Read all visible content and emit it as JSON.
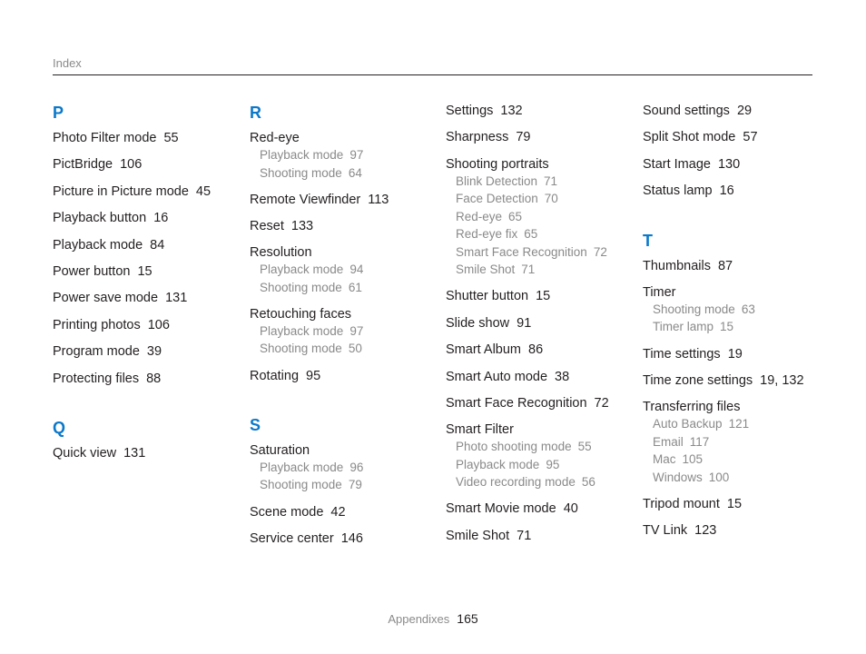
{
  "header": {
    "label": "Index"
  },
  "footer": {
    "section": "Appendixes",
    "page": "165"
  },
  "columns": [
    {
      "sections": [
        {
          "letter": "P",
          "entries": [
            {
              "label": "Photo Filter mode",
              "pages": "55"
            },
            {
              "label": "PictBridge",
              "pages": "106"
            },
            {
              "label": "Picture in Picture mode",
              "pages": "45"
            },
            {
              "label": "Playback button",
              "pages": "16"
            },
            {
              "label": "Playback mode",
              "pages": "84"
            },
            {
              "label": "Power button",
              "pages": "15"
            },
            {
              "label": "Power save mode",
              "pages": "131"
            },
            {
              "label": "Printing photos",
              "pages": "106"
            },
            {
              "label": "Program mode",
              "pages": "39"
            },
            {
              "label": "Protecting files",
              "pages": "88"
            }
          ]
        },
        {
          "letter": "Q",
          "entries": [
            {
              "label": "Quick view",
              "pages": "131"
            }
          ]
        }
      ]
    },
    {
      "sections": [
        {
          "letter": "R",
          "entries": [
            {
              "label": "Red-eye",
              "pages": "",
              "subs": [
                {
                  "label": "Playback mode",
                  "pages": "97"
                },
                {
                  "label": "Shooting mode",
                  "pages": "64"
                }
              ]
            },
            {
              "label": "Remote Viewfinder",
              "pages": "113"
            },
            {
              "label": "Reset",
              "pages": "133"
            },
            {
              "label": "Resolution",
              "pages": "",
              "subs": [
                {
                  "label": "Playback mode",
                  "pages": "94"
                },
                {
                  "label": "Shooting mode",
                  "pages": "61"
                }
              ]
            },
            {
              "label": "Retouching faces",
              "pages": "",
              "subs": [
                {
                  "label": "Playback mode",
                  "pages": "97"
                },
                {
                  "label": "Shooting mode",
                  "pages": "50"
                }
              ]
            },
            {
              "label": "Rotating",
              "pages": "95"
            }
          ]
        },
        {
          "letter": "S",
          "entries": [
            {
              "label": "Saturation",
              "pages": "",
              "subs": [
                {
                  "label": "Playback mode",
                  "pages": "96"
                },
                {
                  "label": "Shooting mode",
                  "pages": "79"
                }
              ]
            },
            {
              "label": "Scene mode",
              "pages": "42"
            },
            {
              "label": "Service center",
              "pages": "146"
            }
          ]
        }
      ]
    },
    {
      "sections": [
        {
          "letter": "",
          "entries": [
            {
              "label": "Settings",
              "pages": "132"
            },
            {
              "label": "Sharpness",
              "pages": "79"
            },
            {
              "label": "Shooting portraits",
              "pages": "",
              "subs": [
                {
                  "label": "Blink Detection",
                  "pages": "71"
                },
                {
                  "label": "Face Detection",
                  "pages": "70"
                },
                {
                  "label": "Red-eye",
                  "pages": "65"
                },
                {
                  "label": "Red-eye fix",
                  "pages": "65"
                },
                {
                  "label": "Smart Face Recognition",
                  "pages": "72"
                },
                {
                  "label": "Smile Shot",
                  "pages": "71"
                }
              ]
            },
            {
              "label": "Shutter button",
              "pages": "15"
            },
            {
              "label": "Slide show",
              "pages": "91"
            },
            {
              "label": "Smart Album",
              "pages": "86"
            },
            {
              "label": "Smart Auto mode",
              "pages": "38"
            },
            {
              "label": "Smart Face Recognition",
              "pages": "72"
            },
            {
              "label": "Smart Filter",
              "pages": "",
              "subs": [
                {
                  "label": "Photo shooting mode",
                  "pages": "55"
                },
                {
                  "label": "Playback mode",
                  "pages": "95"
                },
                {
                  "label": "Video recording mode",
                  "pages": "56"
                }
              ]
            },
            {
              "label": "Smart Movie mode",
              "pages": "40"
            },
            {
              "label": "Smile Shot",
              "pages": "71"
            }
          ]
        }
      ]
    },
    {
      "sections": [
        {
          "letter": "",
          "entries": [
            {
              "label": "Sound settings",
              "pages": "29"
            },
            {
              "label": "Split Shot mode",
              "pages": "57"
            },
            {
              "label": "Start Image",
              "pages": "130"
            },
            {
              "label": "Status lamp",
              "pages": "16"
            }
          ]
        },
        {
          "letter": "T",
          "entries": [
            {
              "label": "Thumbnails",
              "pages": "87"
            },
            {
              "label": "Timer",
              "pages": "",
              "subs": [
                {
                  "label": "Shooting mode",
                  "pages": "63"
                },
                {
                  "label": "Timer lamp",
                  "pages": "15"
                }
              ]
            },
            {
              "label": "Time settings",
              "pages": "19"
            },
            {
              "label": "Time zone settings",
              "pages": "19, 132"
            },
            {
              "label": "Transferring files",
              "pages": "",
              "subs": [
                {
                  "label": "Auto Backup",
                  "pages": "121"
                },
                {
                  "label": "Email",
                  "pages": "117"
                },
                {
                  "label": "Mac",
                  "pages": "105"
                },
                {
                  "label": "Windows",
                  "pages": "100"
                }
              ]
            },
            {
              "label": "Tripod mount",
              "pages": "15"
            },
            {
              "label": "TV Link",
              "pages": "123"
            }
          ]
        }
      ]
    }
  ]
}
